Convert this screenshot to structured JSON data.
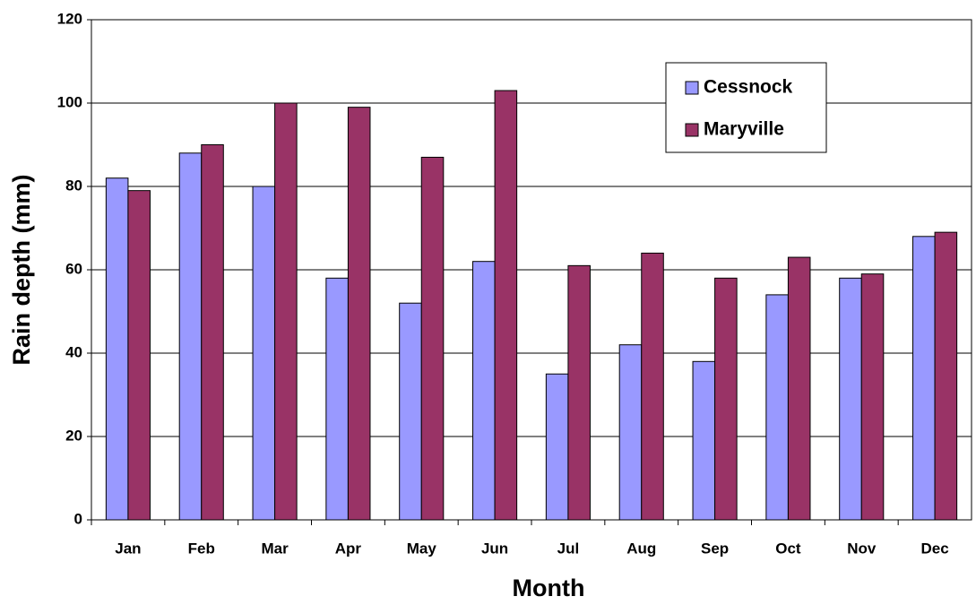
{
  "chart_data": {
    "type": "bar",
    "x_label": "Month",
    "y_label": "Rain depth (mm)",
    "categories": [
      "Jan",
      "Feb",
      "Mar",
      "Apr",
      "May",
      "Jun",
      "Jul",
      "Aug",
      "Sep",
      "Oct",
      "Nov",
      "Dec"
    ],
    "series": [
      {
        "name": "Cessnock",
        "color": "#9999ff",
        "values": [
          82,
          88,
          80,
          58,
          52,
          62,
          35,
          42,
          38,
          54,
          58,
          68
        ]
      },
      {
        "name": "Maryville",
        "color": "#993366",
        "values": [
          79,
          90,
          100,
          99,
          87,
          103,
          61,
          64,
          58,
          63,
          59,
          69
        ]
      }
    ],
    "ylim": [
      0,
      120
    ],
    "yticks": [
      0,
      20,
      40,
      60,
      80,
      100,
      120
    ],
    "grid": true,
    "legend": "upper right"
  }
}
